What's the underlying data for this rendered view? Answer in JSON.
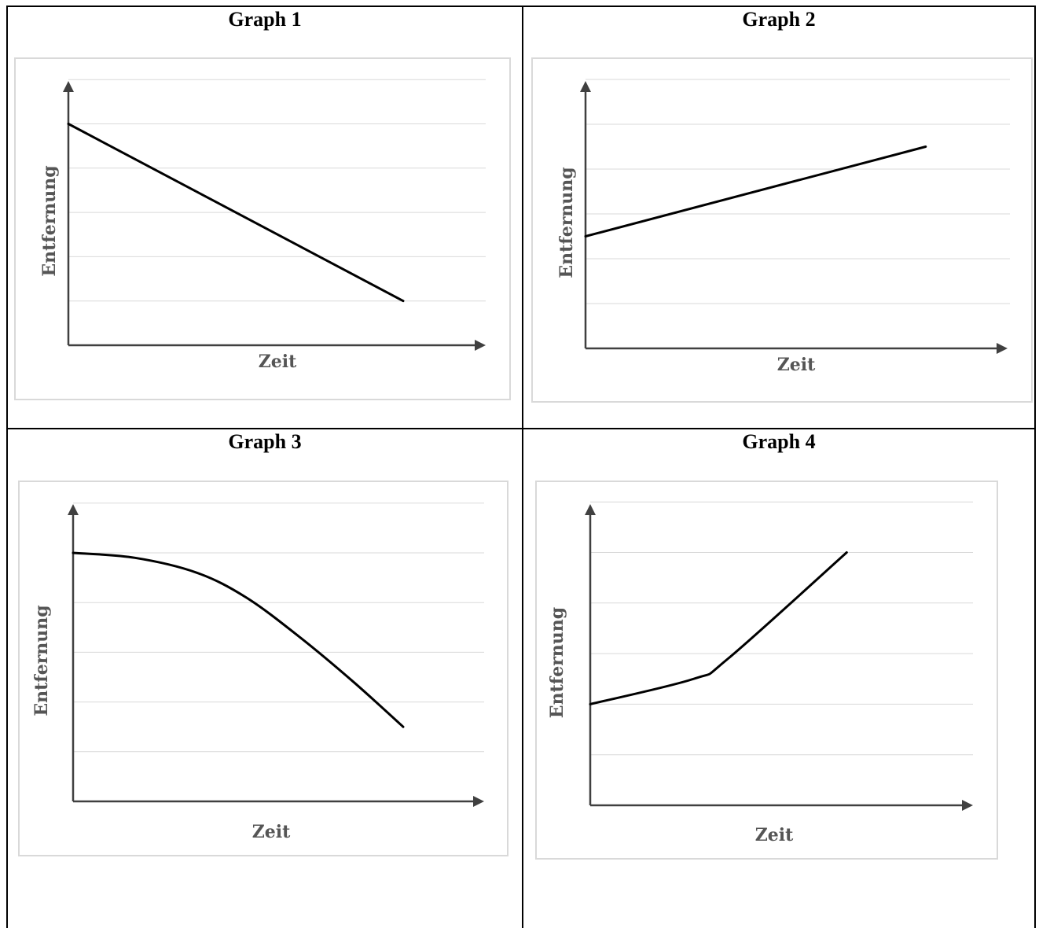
{
  "chart_data": [
    {
      "type": "line",
      "title": "Graph 1",
      "xlabel": "Zeit",
      "ylabel": "Entfernung",
      "xlim": [
        0,
        10
      ],
      "ylim": [
        0,
        6
      ],
      "grid": true,
      "series": [
        {
          "values": [
            [
              0,
              5
            ],
            [
              8,
              1
            ]
          ]
        }
      ]
    },
    {
      "type": "line",
      "title": "Graph 2",
      "xlabel": "Zeit",
      "ylabel": "Entfernung",
      "xlim": [
        0,
        10
      ],
      "ylim": [
        0,
        6
      ],
      "grid": true,
      "series": [
        {
          "values": [
            [
              0,
              2.5
            ],
            [
              8,
              4.5
            ]
          ]
        }
      ]
    },
    {
      "type": "line",
      "title": "Graph 3",
      "xlabel": "Zeit",
      "ylabel": "Entfernung",
      "xlim": [
        0,
        10
      ],
      "ylim": [
        0,
        6
      ],
      "grid": true,
      "series": [
        {
          "values": [
            [
              0,
              5
            ],
            [
              1.5,
              4.9
            ],
            [
              3,
              4.6
            ],
            [
              4.2,
              4.1
            ],
            [
              5.5,
              3.3
            ],
            [
              6.8,
              2.4
            ],
            [
              8,
              1.5
            ]
          ]
        }
      ]
    },
    {
      "type": "line",
      "title": "Graph 4",
      "xlabel": "Zeit",
      "ylabel": "Entfernung",
      "xlim": [
        0,
        10
      ],
      "ylim": [
        0,
        6
      ],
      "grid": true,
      "series": [
        {
          "values": [
            [
              0,
              2
            ],
            [
              2.7,
              2.5
            ],
            [
              3.6,
              2.9
            ],
            [
              6.7,
              5
            ]
          ]
        }
      ]
    }
  ]
}
